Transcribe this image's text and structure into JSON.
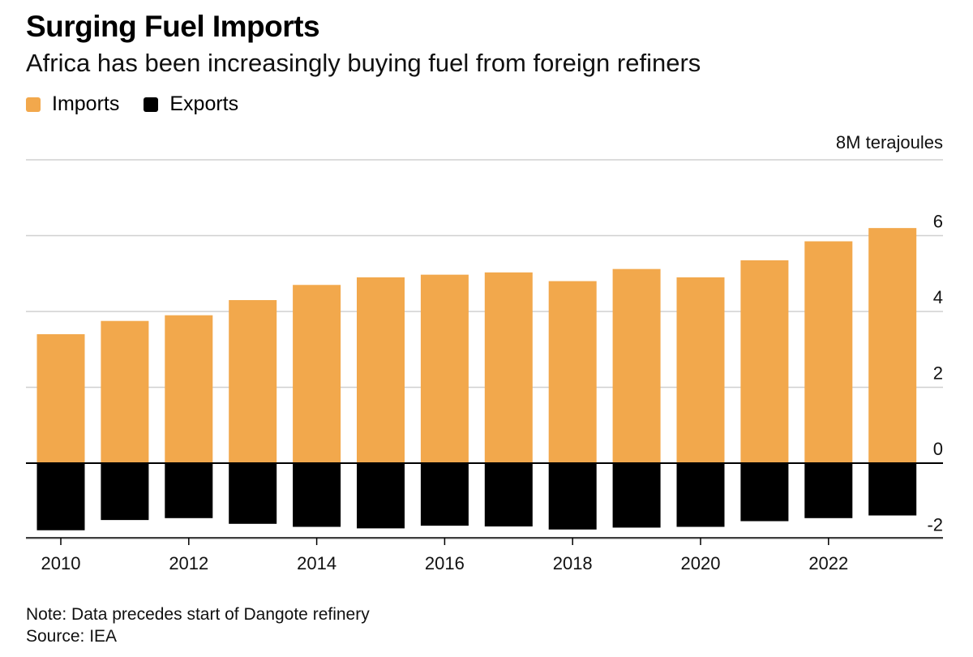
{
  "title": "Surging Fuel Imports",
  "subtitle": "Africa has been increasingly buying fuel from foreign refiners",
  "note": "Note: Data precedes start of Dangote refinery",
  "source": "Source: IEA",
  "colors": {
    "imports": "#F2A84C",
    "exports": "#000000",
    "grid": "#d0d0d0",
    "zero": "#000000"
  },
  "chart_data": {
    "type": "bar",
    "stacked": "diverging",
    "title": "Surging Fuel Imports",
    "subtitle": "Africa has been increasingly buying fuel from foreign refiners",
    "unit_label": "8M terajoules",
    "xlabel": "",
    "ylabel": "",
    "ylim": [
      -2,
      8
    ],
    "yticks": [
      -2,
      0,
      2,
      4,
      6
    ],
    "legend_position": "top-left",
    "categories": [
      "2010",
      "2011",
      "2012",
      "2013",
      "2014",
      "2015",
      "2016",
      "2017",
      "2018",
      "2019",
      "2020",
      "2021",
      "2022",
      "2023"
    ],
    "xtick_labels": [
      "2010",
      "2012",
      "2014",
      "2016",
      "2018",
      "2020",
      "2022"
    ],
    "series": [
      {
        "name": "Imports",
        "values": [
          3.4,
          3.75,
          3.9,
          4.3,
          4.7,
          4.9,
          4.97,
          5.03,
          4.8,
          5.12,
          4.9,
          5.35,
          5.85,
          6.2
        ]
      },
      {
        "name": "Exports",
        "values": [
          -1.77,
          -1.5,
          -1.45,
          -1.6,
          -1.68,
          -1.72,
          -1.65,
          -1.67,
          -1.75,
          -1.7,
          -1.68,
          -1.53,
          -1.45,
          -1.38
        ]
      }
    ]
  }
}
